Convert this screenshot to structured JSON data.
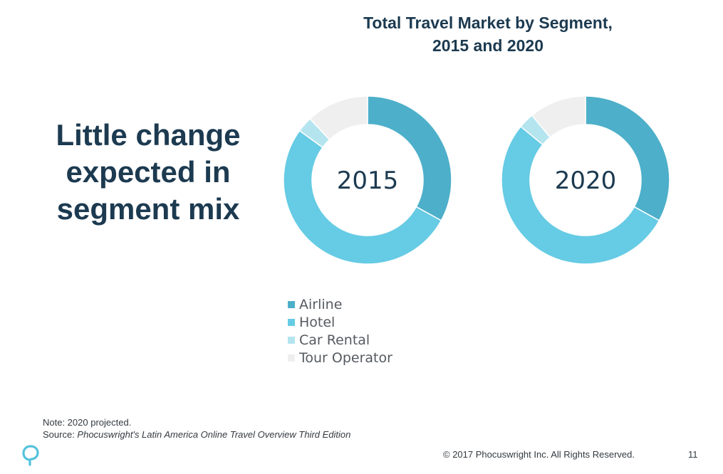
{
  "slide": {
    "headline_lines": [
      "Little change",
      "expected in",
      "segment mix"
    ],
    "note": "Note: 2020 projected.",
    "source_prefix": "Source: ",
    "source_title": "Phocuswright's Latin America Online Travel Overview Third Edition",
    "copyright": "© 2017 Phocuswright Inc. All Rights Reserved.",
    "page_number": "11",
    "logo": "phocuswright-logo-icon"
  },
  "chart_data": {
    "type": "pie",
    "variant": "donut",
    "title_lines": [
      "Total Travel Market by Segment,",
      "2015 and 2020"
    ],
    "legend_position": "bottom-left",
    "series": [
      {
        "name": "2015",
        "categories": [
          "Airline",
          "Hotel",
          "Car Rental",
          "Tour Operator"
        ],
        "values": [
          33,
          52,
          3,
          12
        ]
      },
      {
        "name": "2020",
        "categories": [
          "Airline",
          "Hotel",
          "Car Rental",
          "Tour Operator"
        ],
        "values": [
          33,
          53,
          3,
          11
        ]
      }
    ],
    "legend": [
      {
        "label": "Airline",
        "color": "#4dafc9"
      },
      {
        "label": "Hotel",
        "color": "#66cbe4"
      },
      {
        "label": "Car Rental",
        "color": "#b4e5ef"
      },
      {
        "label": "Tour Operator",
        "color": "#efefef"
      }
    ]
  }
}
